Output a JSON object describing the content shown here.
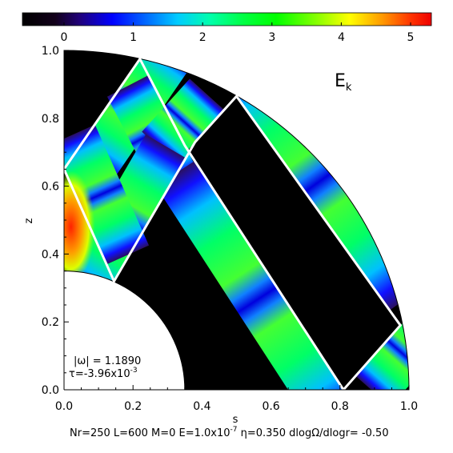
{
  "chart_data": {
    "type": "heatmap",
    "colorbar": {
      "range": [
        -0.6,
        5.3
      ],
      "ticks": [
        0,
        1,
        2,
        3,
        4,
        5
      ],
      "tick_labels": [
        "0",
        "1",
        "2",
        "3",
        "4",
        "5"
      ],
      "colormap": "rainbow (black-blue-cyan-green-yellow-red)"
    },
    "plot_label": "E",
    "plot_label_sub": "k",
    "xlabel": "s",
    "ylabel": "z",
    "xlim": [
      0.0,
      1.0
    ],
    "ylim": [
      0.0,
      1.0
    ],
    "x_ticks": [
      0.0,
      0.2,
      0.4,
      0.6,
      0.8,
      1.0
    ],
    "x_tick_labels": [
      "0.0",
      "0.2",
      "0.4",
      "0.6",
      "0.8",
      "1.0"
    ],
    "y_ticks": [
      0.0,
      0.2,
      0.4,
      0.6,
      0.8,
      1.0
    ],
    "y_tick_labels": [
      "0.0",
      "0.2",
      "0.4",
      "0.6",
      "0.8",
      "1.0"
    ],
    "inner_radius": 0.35,
    "outer_radius": 1.0,
    "attractor_path": [
      [
        0.0,
        0.65
      ],
      [
        0.22,
        0.975
      ],
      [
        0.35,
        0.72
      ],
      [
        0.81,
        0.0
      ],
      [
        0.975,
        0.19
      ],
      [
        0.5,
        0.865
      ],
      [
        0.38,
        0.73
      ],
      [
        0.145,
        0.32
      ],
      [
        0.0,
        0.65
      ]
    ],
    "annotation_omega": "|ω| = 1.1890",
    "annotation_tau_base": "τ=-3.96x10",
    "annotation_tau_exp": "-3",
    "footer": {
      "prefix": "Nr=250 L=600 M=0 E=1.0x10",
      "exp": "-7",
      "suffix": " η=0.350 dlogΩ/dlogr= -0.50"
    }
  }
}
